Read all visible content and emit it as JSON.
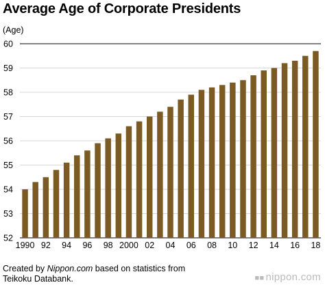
{
  "chart_data": {
    "type": "bar",
    "title": "Average Age of Corporate Presidents",
    "ylabel": "(Age)",
    "xlabel": "",
    "ylim": [
      52,
      60
    ],
    "yticks": [
      52,
      53,
      54,
      55,
      56,
      57,
      58,
      59,
      60
    ],
    "grid": true,
    "bar_color": "#7b5a23",
    "categories": [
      "1990",
      "1991",
      "1992",
      "1993",
      "1994",
      "1995",
      "1996",
      "1997",
      "1998",
      "1999",
      "2000",
      "2001",
      "2002",
      "2003",
      "2004",
      "2005",
      "2006",
      "2007",
      "2008",
      "2009",
      "2010",
      "2011",
      "2012",
      "2013",
      "2014",
      "2015",
      "2016",
      "2017",
      "2018"
    ],
    "x_tick_labels": [
      "1990",
      "",
      "92",
      "",
      "94",
      "",
      "96",
      "",
      "98",
      "",
      "2000",
      "",
      "02",
      "",
      "04",
      "",
      "06",
      "",
      "08",
      "",
      "10",
      "",
      "12",
      "",
      "14",
      "",
      "16",
      "",
      "18"
    ],
    "values": [
      54.0,
      54.3,
      54.5,
      54.8,
      55.1,
      55.4,
      55.6,
      55.9,
      56.1,
      56.3,
      56.6,
      56.8,
      57.0,
      57.2,
      57.4,
      57.7,
      57.9,
      58.1,
      58.2,
      58.3,
      58.4,
      58.5,
      58.7,
      58.9,
      59.0,
      59.2,
      59.3,
      59.5,
      59.7
    ]
  },
  "credit": {
    "prefix": "Created by ",
    "source_name": "Nippon.com",
    "suffix": " based on statistics from",
    "line2": "Teikoku Databank."
  },
  "brand": {
    "icon": "nippon-logo-icon",
    "text": "nippon.com"
  }
}
